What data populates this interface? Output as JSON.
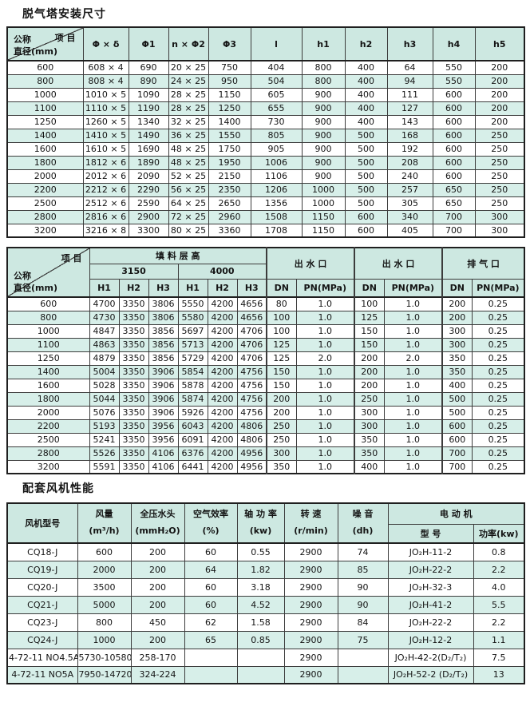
{
  "colors": {
    "header_bg": "#cde8e1",
    "stripe_bg": "#d7efe9",
    "border": "#3c3c3c"
  },
  "table1": {
    "title": "脱气塔安装尺寸",
    "corner": {
      "top": "项 目",
      "bottom_line1": "公称",
      "bottom_line2": "直径(mm)"
    },
    "columns": [
      "Φ × δ",
      "Φ1",
      "n × Φ2",
      "Φ3",
      "l",
      "h1",
      "h2",
      "h3",
      "h4",
      "h5"
    ],
    "rows": [
      [
        "600",
        "608 × 4",
        "690",
        "20 × 25",
        "750",
        "404",
        "800",
        "400",
        "64",
        "550",
        "200"
      ],
      [
        "800",
        "808 × 4",
        "890",
        "24 × 25",
        "950",
        "504",
        "800",
        "400",
        "94",
        "550",
        "200"
      ],
      [
        "1000",
        "1010 × 5",
        "1090",
        "28 × 25",
        "1150",
        "605",
        "900",
        "400",
        "111",
        "600",
        "200"
      ],
      [
        "1100",
        "1110 × 5",
        "1190",
        "28 × 25",
        "1250",
        "655",
        "900",
        "400",
        "127",
        "600",
        "200"
      ],
      [
        "1250",
        "1260 × 5",
        "1340",
        "32 × 25",
        "1400",
        "730",
        "900",
        "400",
        "143",
        "600",
        "200"
      ],
      [
        "1400",
        "1410 × 5",
        "1490",
        "36 × 25",
        "1550",
        "805",
        "900",
        "500",
        "168",
        "600",
        "250"
      ],
      [
        "1600",
        "1610 × 5",
        "1690",
        "48 × 25",
        "1750",
        "905",
        "900",
        "500",
        "192",
        "600",
        "250"
      ],
      [
        "1800",
        "1812 × 6",
        "1890",
        "48 × 25",
        "1950",
        "1006",
        "900",
        "500",
        "208",
        "600",
        "250"
      ],
      [
        "2000",
        "2012 × 6",
        "2090",
        "52 × 25",
        "2150",
        "1106",
        "900",
        "500",
        "240",
        "600",
        "250"
      ],
      [
        "2200",
        "2212 × 6",
        "2290",
        "56 × 25",
        "2350",
        "1206",
        "1000",
        "500",
        "257",
        "650",
        "250"
      ],
      [
        "2500",
        "2512 × 6",
        "2590",
        "64 × 25",
        "2650",
        "1356",
        "1000",
        "500",
        "305",
        "650",
        "250"
      ],
      [
        "2800",
        "2816 × 6",
        "2900",
        "72 × 25",
        "2960",
        "1508",
        "1150",
        "600",
        "340",
        "700",
        "300"
      ],
      [
        "3200",
        "3216 × 8",
        "3300",
        "80 × 25",
        "3360",
        "1708",
        "1150",
        "600",
        "405",
        "700",
        "300"
      ]
    ]
  },
  "table2": {
    "corner": {
      "top": "项 目",
      "bottom_line1": "公称",
      "bottom_line2": "直径(mm)"
    },
    "groups": {
      "packing": "填 料 层 高",
      "outlet1": "出 水 口",
      "outlet2": "出 水 口",
      "exhaust": "排 气 口"
    },
    "packing_subgroups": [
      "3150",
      "4000"
    ],
    "sub_columns": [
      "H1",
      "H2",
      "H3",
      "H1",
      "H2",
      "H3",
      "DN",
      "PN(MPa)",
      "DN",
      "PN(MPa)",
      "DN",
      "PN(MPa)"
    ],
    "rows": [
      [
        "600",
        "4700",
        "3350",
        "3806",
        "5550",
        "4200",
        "4656",
        "80",
        "1.0",
        "100",
        "1.0",
        "200",
        "0.25"
      ],
      [
        "800",
        "4730",
        "3350",
        "3806",
        "5580",
        "4200",
        "4656",
        "100",
        "1.0",
        "125",
        "1.0",
        "200",
        "0.25"
      ],
      [
        "1000",
        "4847",
        "3350",
        "3856",
        "5697",
        "4200",
        "4706",
        "100",
        "1.0",
        "150",
        "1.0",
        "300",
        "0.25"
      ],
      [
        "1100",
        "4863",
        "3350",
        "3856",
        "5713",
        "4200",
        "4706",
        "125",
        "1.0",
        "150",
        "1.0",
        "300",
        "0.25"
      ],
      [
        "1250",
        "4879",
        "3350",
        "3856",
        "5729",
        "4200",
        "4706",
        "125",
        "2.0",
        "200",
        "2.0",
        "350",
        "0.25"
      ],
      [
        "1400",
        "5004",
        "3350",
        "3906",
        "5854",
        "4200",
        "4756",
        "150",
        "1.0",
        "200",
        "1.0",
        "350",
        "0.25"
      ],
      [
        "1600",
        "5028",
        "3350",
        "3906",
        "5878",
        "4200",
        "4756",
        "150",
        "1.0",
        "200",
        "1.0",
        "400",
        "0.25"
      ],
      [
        "1800",
        "5044",
        "3350",
        "3906",
        "5874",
        "4200",
        "4756",
        "200",
        "1.0",
        "250",
        "1.0",
        "500",
        "0.25"
      ],
      [
        "2000",
        "5076",
        "3350",
        "3906",
        "5926",
        "4200",
        "4756",
        "200",
        "1.0",
        "300",
        "1.0",
        "500",
        "0.25"
      ],
      [
        "2200",
        "5193",
        "3350",
        "3956",
        "6043",
        "4200",
        "4806",
        "250",
        "1.0",
        "300",
        "1.0",
        "600",
        "0.25"
      ],
      [
        "2500",
        "5241",
        "3350",
        "3956",
        "6091",
        "4200",
        "4806",
        "250",
        "1.0",
        "350",
        "1.0",
        "600",
        "0.25"
      ],
      [
        "2800",
        "5526",
        "3350",
        "4106",
        "6376",
        "4200",
        "4956",
        "300",
        "1.0",
        "350",
        "1.0",
        "700",
        "0.25"
      ],
      [
        "3200",
        "5591",
        "3350",
        "4106",
        "6441",
        "4200",
        "4956",
        "350",
        "1.0",
        "400",
        "1.0",
        "700",
        "0.25"
      ]
    ]
  },
  "table3": {
    "title": "配套风机性能",
    "columns": [
      {
        "label": "风机型号",
        "unit": ""
      },
      {
        "label": "风量",
        "unit": "(m³/h)"
      },
      {
        "label": "全压水头",
        "unit": "(mmH₂O)"
      },
      {
        "label": "空气效率",
        "unit": "(%)"
      },
      {
        "label": "轴 功 率",
        "unit": "(kw)"
      },
      {
        "label": "转 速",
        "unit": "(r/min)"
      },
      {
        "label": "噪 音",
        "unit": "(dh)"
      }
    ],
    "motor_group": {
      "label": "电 动 机",
      "model": "型 号",
      "power": "功率(kw)"
    },
    "rows": [
      [
        "CQ18-J",
        "600",
        "200",
        "60",
        "0.55",
        "2900",
        "74",
        "JO₂H-11-2",
        "0.8"
      ],
      [
        "CQ19-J",
        "2000",
        "200",
        "64",
        "1.82",
        "2900",
        "85",
        "JO₂H-22-2",
        "2.2"
      ],
      [
        "CQ20-J",
        "3500",
        "200",
        "60",
        "3.18",
        "2900",
        "90",
        "JO₂H-32-3",
        "4.0"
      ],
      [
        "CQ21-J",
        "5000",
        "200",
        "60",
        "4.52",
        "2900",
        "90",
        "JO₂H-41-2",
        "5.5"
      ],
      [
        "CQ23-J",
        "800",
        "450",
        "62",
        "1.58",
        "2900",
        "84",
        "JO₂H-22-2",
        "2.2"
      ],
      [
        "CQ24-J",
        "1000",
        "200",
        "65",
        "0.85",
        "2900",
        "75",
        "JO₂H-12-2",
        "1.1"
      ],
      [
        "4-72-11 NO4.5A",
        "5730-10580",
        "258-170",
        "",
        "",
        "2900",
        "",
        "JO₂H-42-2(D₂/T₂)",
        "7.5"
      ],
      [
        "4-72-11 NO5A",
        "7950-14720",
        "324-224",
        "",
        "",
        "2900",
        "",
        "JO₂H-52-2 (D₂/T₂)",
        "13"
      ]
    ]
  }
}
